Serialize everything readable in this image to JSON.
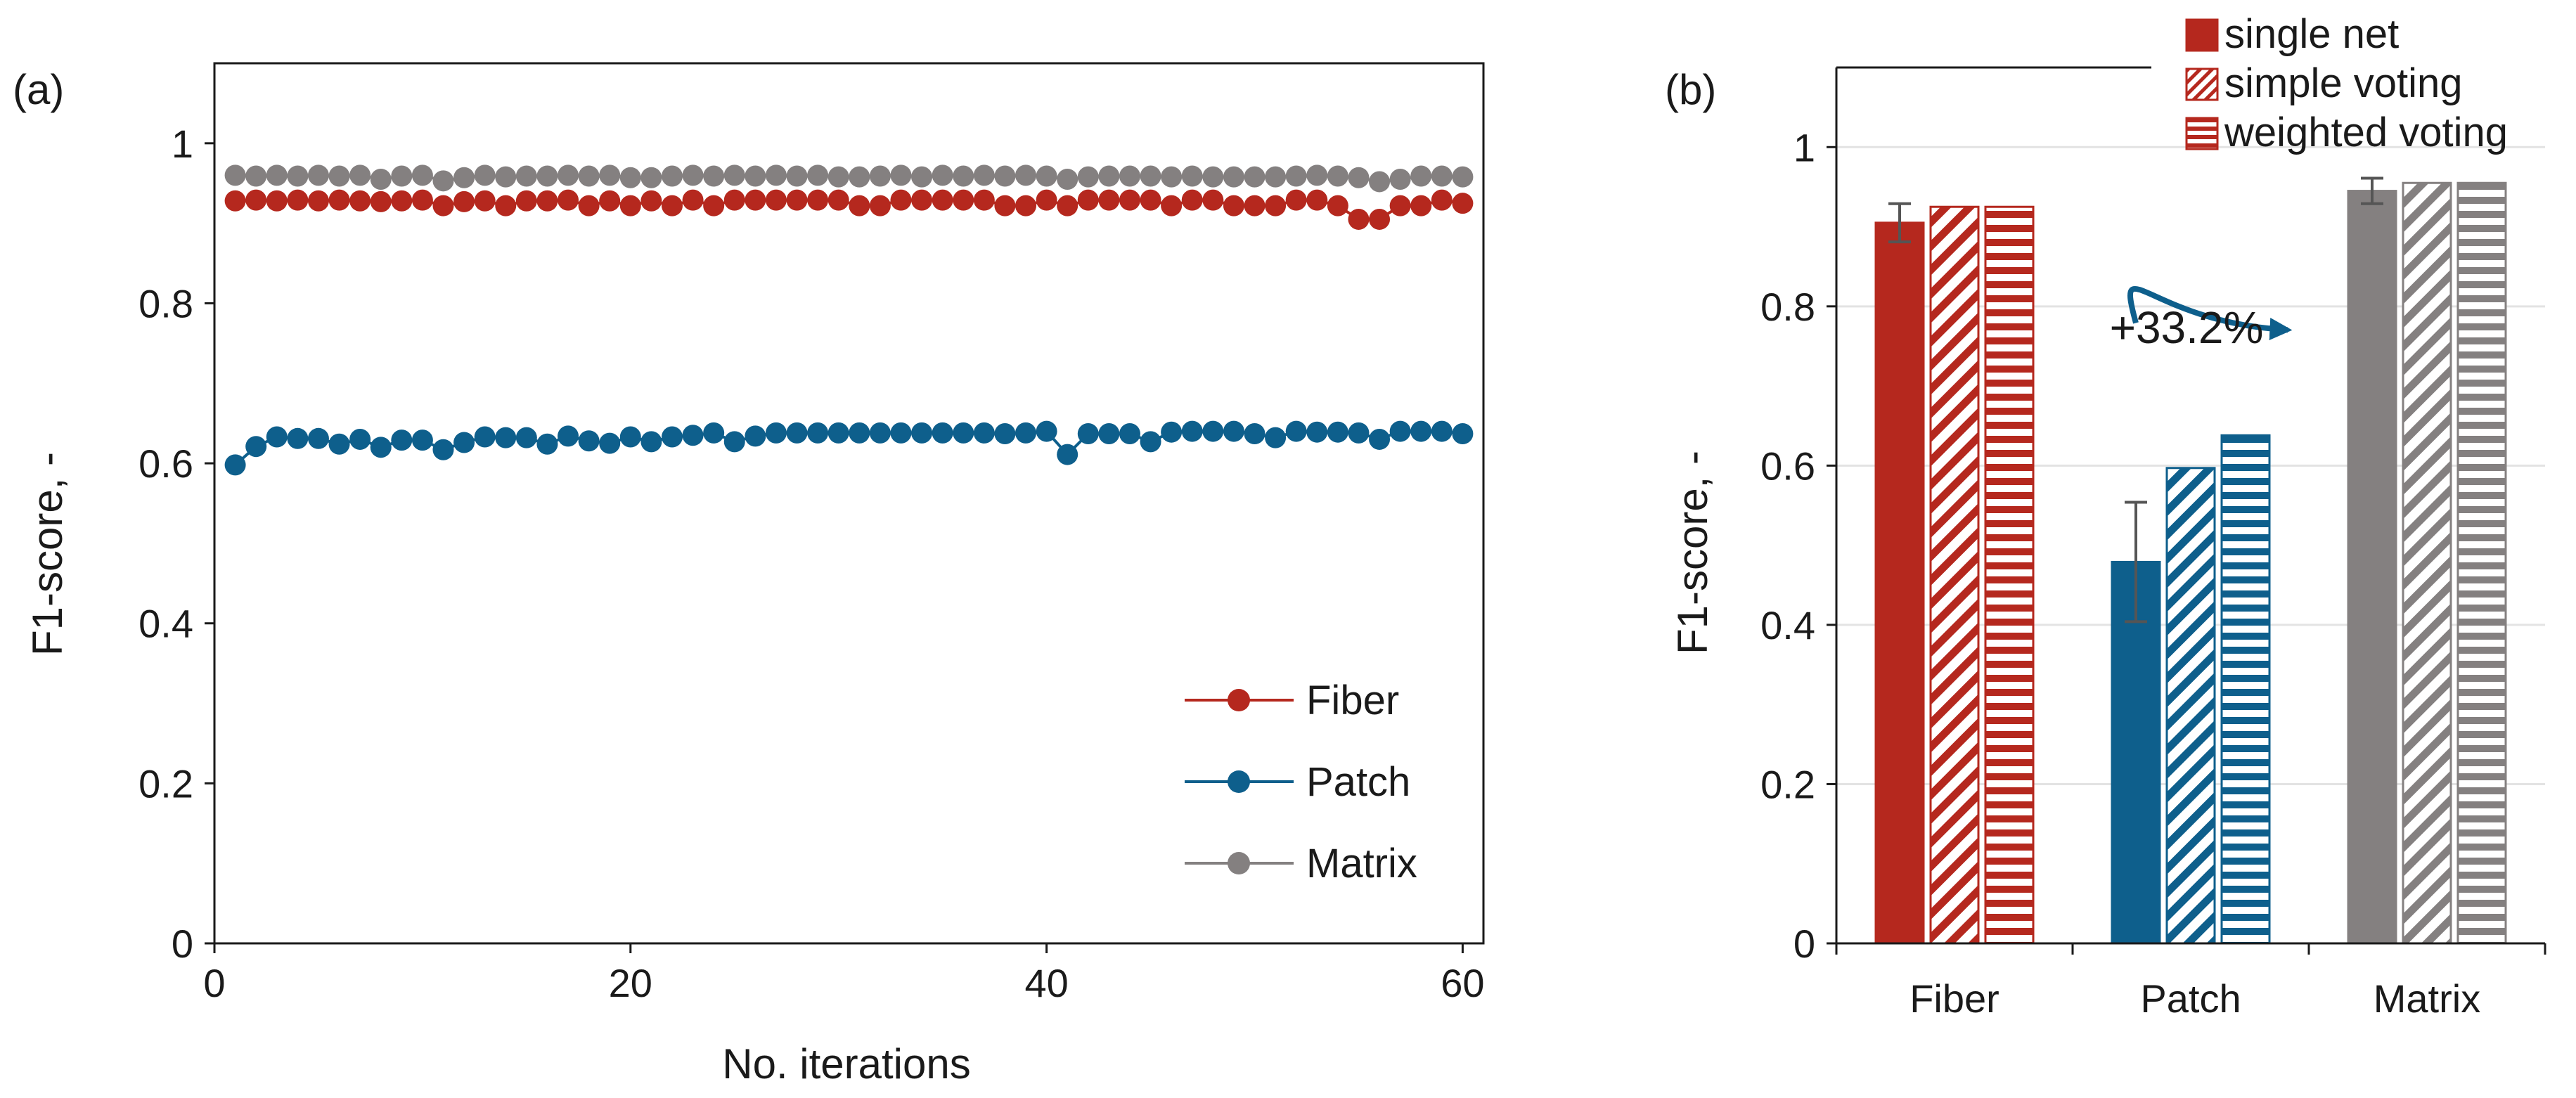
{
  "colors": {
    "fiber": "#b5281e",
    "patch": "#0e5f8c",
    "matrix": "#848080",
    "grid": "#e3e3e3",
    "axis": "#1a1a1a",
    "error_bar": "#555555"
  },
  "chart_data": [
    {
      "panel_label": "(a)",
      "type": "scatter",
      "connected": true,
      "xlabel": "No. iterations",
      "ylabel": "F1-score, -",
      "xlim": [
        0,
        61
      ],
      "ylim": [
        0,
        1.1
      ],
      "xticks": [
        0,
        20,
        40,
        60
      ],
      "yticks": [
        0,
        0.2,
        0.4,
        0.6,
        0.8,
        1
      ],
      "xtick_labels": [
        "0",
        "20",
        "40",
        "60"
      ],
      "ytick_labels": [
        "0",
        "0.2",
        "0.4",
        "0.6",
        "0.8",
        "1"
      ],
      "grid": false,
      "legend_position": "bottom-right",
      "series": [
        {
          "name": "Fiber",
          "color_key": "fiber",
          "x": [
            1,
            2,
            3,
            4,
            5,
            6,
            7,
            8,
            9,
            10,
            11,
            12,
            13,
            14,
            15,
            16,
            17,
            18,
            19,
            20,
            21,
            22,
            23,
            24,
            25,
            26,
            27,
            28,
            29,
            30,
            31,
            32,
            33,
            34,
            35,
            36,
            37,
            38,
            39,
            40,
            41,
            42,
            43,
            44,
            45,
            46,
            47,
            48,
            49,
            50,
            51,
            52,
            53,
            54,
            55,
            56,
            57,
            58,
            59,
            60
          ],
          "y": [
            0.928,
            0.929,
            0.928,
            0.929,
            0.928,
            0.929,
            0.928,
            0.927,
            0.928,
            0.929,
            0.922,
            0.927,
            0.928,
            0.922,
            0.928,
            0.928,
            0.929,
            0.922,
            0.928,
            0.922,
            0.928,
            0.922,
            0.929,
            0.922,
            0.929,
            0.929,
            0.929,
            0.929,
            0.929,
            0.929,
            0.922,
            0.922,
            0.929,
            0.929,
            0.929,
            0.929,
            0.929,
            0.922,
            0.922,
            0.929,
            0.922,
            0.929,
            0.929,
            0.929,
            0.929,
            0.922,
            0.929,
            0.929,
            0.922,
            0.922,
            0.922,
            0.929,
            0.929,
            0.922,
            0.905,
            0.905,
            0.922,
            0.922,
            0.929,
            0.925
          ]
        },
        {
          "name": "Patch",
          "color_key": "patch",
          "x": [
            1,
            2,
            3,
            4,
            5,
            6,
            7,
            8,
            9,
            10,
            11,
            12,
            13,
            14,
            15,
            16,
            17,
            18,
            19,
            20,
            21,
            22,
            23,
            24,
            25,
            26,
            27,
            28,
            29,
            30,
            31,
            32,
            33,
            34,
            35,
            36,
            37,
            38,
            39,
            40,
            41,
            42,
            43,
            44,
            45,
            46,
            47,
            48,
            49,
            50,
            51,
            52,
            53,
            54,
            55,
            56,
            57,
            58,
            59,
            60
          ],
          "y": [
            0.598,
            0.621,
            0.633,
            0.631,
            0.631,
            0.624,
            0.63,
            0.62,
            0.629,
            0.629,
            0.617,
            0.626,
            0.633,
            0.632,
            0.632,
            0.624,
            0.634,
            0.628,
            0.625,
            0.633,
            0.627,
            0.633,
            0.635,
            0.638,
            0.627,
            0.634,
            0.638,
            0.638,
            0.638,
            0.638,
            0.638,
            0.638,
            0.638,
            0.638,
            0.638,
            0.638,
            0.638,
            0.637,
            0.638,
            0.64,
            0.611,
            0.637,
            0.637,
            0.637,
            0.627,
            0.639,
            0.64,
            0.64,
            0.64,
            0.637,
            0.632,
            0.64,
            0.639,
            0.639,
            0.638,
            0.63,
            0.64,
            0.64,
            0.64,
            0.637
          ]
        },
        {
          "name": "Matrix",
          "color_key": "matrix",
          "x": [
            1,
            2,
            3,
            4,
            5,
            6,
            7,
            8,
            9,
            10,
            11,
            12,
            13,
            14,
            15,
            16,
            17,
            18,
            19,
            20,
            21,
            22,
            23,
            24,
            25,
            26,
            27,
            28,
            29,
            30,
            31,
            32,
            33,
            34,
            35,
            36,
            37,
            38,
            39,
            40,
            41,
            42,
            43,
            44,
            45,
            46,
            47,
            48,
            49,
            50,
            51,
            52,
            53,
            54,
            55,
            56,
            57,
            58,
            59,
            60
          ],
          "y": [
            0.96,
            0.959,
            0.96,
            0.959,
            0.96,
            0.959,
            0.96,
            0.955,
            0.959,
            0.96,
            0.953,
            0.957,
            0.96,
            0.958,
            0.959,
            0.959,
            0.96,
            0.959,
            0.96,
            0.957,
            0.957,
            0.959,
            0.96,
            0.959,
            0.96,
            0.959,
            0.96,
            0.959,
            0.96,
            0.958,
            0.958,
            0.959,
            0.96,
            0.958,
            0.96,
            0.959,
            0.96,
            0.959,
            0.96,
            0.959,
            0.955,
            0.958,
            0.959,
            0.959,
            0.959,
            0.958,
            0.959,
            0.958,
            0.958,
            0.958,
            0.958,
            0.959,
            0.96,
            0.959,
            0.957,
            0.952,
            0.955,
            0.959,
            0.959,
            0.958
          ]
        }
      ]
    },
    {
      "panel_label": "(b)",
      "type": "bar",
      "xlabel": "",
      "ylabel": "F1-score, -",
      "ylim": [
        0,
        1.1
      ],
      "yticks": [
        0,
        0.2,
        0.4,
        0.6,
        0.8,
        1
      ],
      "ytick_labels": [
        "0",
        "0.2",
        "0.4",
        "0.6",
        "0.8",
        "1"
      ],
      "grid": true,
      "legend_position": "top-right",
      "categories": [
        "Fiber",
        "Patch",
        "Matrix"
      ],
      "category_color_keys": [
        "fiber",
        "patch",
        "matrix"
      ],
      "series": [
        {
          "name": "single net",
          "pattern": "solid",
          "values": [
            0.905,
            0.479,
            0.945
          ],
          "error": [
            0.024,
            0.075,
            0.016
          ]
        },
        {
          "name": "simple voting",
          "pattern": "diagonal",
          "values": [
            0.925,
            0.597,
            0.955
          ]
        },
        {
          "name": "weighted voting",
          "pattern": "horizontal",
          "values": [
            0.925,
            0.638,
            0.955
          ]
        }
      ],
      "annotation": {
        "text": "+33.2%",
        "category": "Patch",
        "from_series": "single net",
        "to_series": "weighted voting"
      }
    }
  ]
}
